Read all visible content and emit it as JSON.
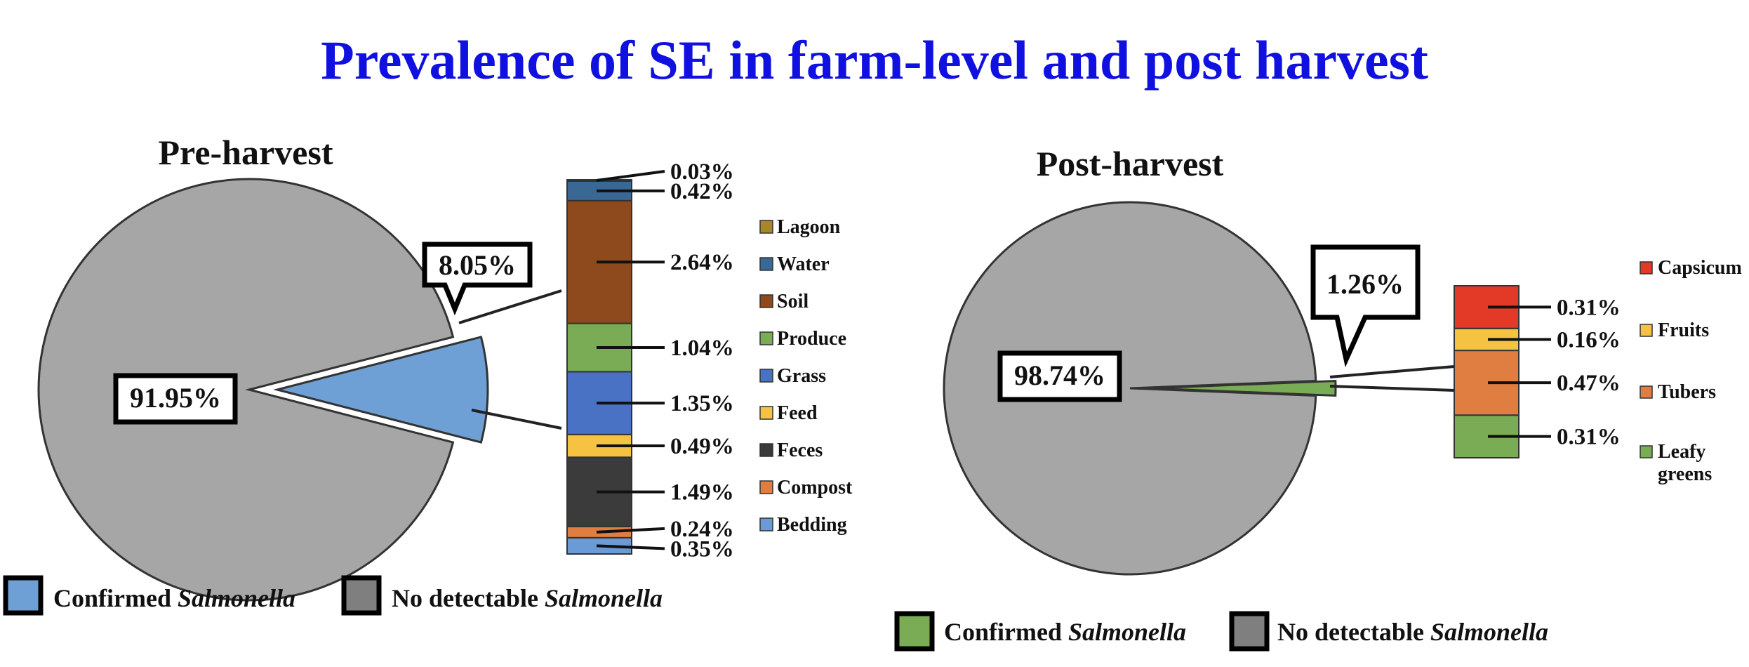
{
  "title": "Prevalence of SE in farm-level and post harvest",
  "colors": {
    "title": "#1010e0",
    "pie_gray": "#a6a6a6",
    "pre_confirmed": "#6ea0d6",
    "post_confirmed": "#7aab55",
    "legend_gray": "#7f7f7f"
  },
  "chart_data": [
    {
      "type": "pie",
      "title": "Pre-harvest",
      "slices": [
        {
          "label": "Confirmed Salmonella",
          "value": 8.05,
          "value_label": "8.05%"
        },
        {
          "label": "No detectable Salmonella",
          "value": 91.95,
          "value_label": "91.95%"
        }
      ],
      "breakdown": {
        "type": "stacked-bar",
        "series": [
          {
            "name": "Bedding",
            "value": 0.35,
            "label": "0.35%",
            "color": "#6b9bd6"
          },
          {
            "name": "Compost",
            "value": 0.24,
            "label": "0.24%",
            "color": "#e07d40"
          },
          {
            "name": "Feces",
            "value": 1.49,
            "label": "1.49%",
            "color": "#3b3b3b"
          },
          {
            "name": "Feed",
            "value": 0.49,
            "label": "0.49%",
            "color": "#f5c242"
          },
          {
            "name": "Grass",
            "value": 1.35,
            "label": "1.35%",
            "color": "#4a72c4"
          },
          {
            "name": "Produce",
            "value": 1.04,
            "label": "1.04%",
            "color": "#7aab55"
          },
          {
            "name": "Soil",
            "value": 2.64,
            "label": "2.64%",
            "color": "#8e4a1c"
          },
          {
            "name": "Water",
            "value": 0.42,
            "label": "0.42%",
            "color": "#3a6894"
          },
          {
            "name": "Lagoon",
            "value": 0.03,
            "label": "0.03%",
            "color": "#a8862a"
          }
        ]
      },
      "legend": {
        "items": [
          "Lagoon",
          "Water",
          "Soil",
          "Produce",
          "Grass",
          "Feed",
          "Feces",
          "Compost",
          "Bedding"
        ],
        "colors": [
          "#a8862a",
          "#3a6894",
          "#8e4a1c",
          "#7aab55",
          "#4a72c4",
          "#f5c242",
          "#3b3b3b",
          "#e07d40",
          "#6b9bd6"
        ]
      },
      "bottom_legend": {
        "confirmed": "Confirmed",
        "not_detected": "No detectable",
        "organism": "Salmonella"
      }
    },
    {
      "type": "pie",
      "title": "Post-harvest",
      "slices": [
        {
          "label": "Confirmed Salmonella",
          "value": 1.26,
          "value_label": "1.26%"
        },
        {
          "label": "No detectable Salmonella",
          "value": 98.74,
          "value_label": "98.74%"
        }
      ],
      "breakdown": {
        "type": "stacked-bar",
        "series": [
          {
            "name": "Leafy greens",
            "value": 0.31,
            "label": "0.31%",
            "color": "#7aab55"
          },
          {
            "name": "Tubers",
            "value": 0.47,
            "label": "0.47%",
            "color": "#e07d40"
          },
          {
            "name": "Fruits",
            "value": 0.16,
            "label": "0.16%",
            "color": "#f5c242"
          },
          {
            "name": "Capsicum",
            "value": 0.31,
            "label": "0.31%",
            "color": "#e23a27"
          }
        ]
      },
      "legend": {
        "items": [
          "Capsicum",
          "Fruits",
          "Tubers",
          "Leafy",
          "greens"
        ],
        "colors": [
          "#e23a27",
          "#f5c242",
          "#e07d40",
          "#7aab55"
        ]
      },
      "bottom_legend": {
        "confirmed": "Confirmed",
        "not_detected": "No detectable",
        "organism": "Salmonella"
      }
    }
  ]
}
